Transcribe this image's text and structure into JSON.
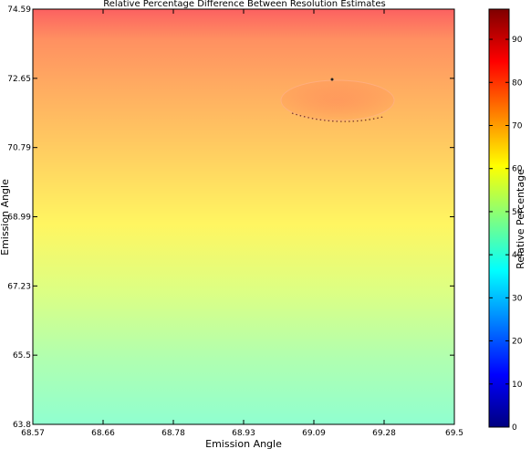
{
  "chart_data": {
    "type": "heatmap",
    "title": "Relative Percentage Difference Between Resolution Estimates",
    "xlabel": "Emission Angle",
    "ylabel": "Emission Angle",
    "x_ticks": [
      "68.57",
      "68.66",
      "68.78",
      "68.93",
      "69.09",
      "69.28",
      "69.5"
    ],
    "y_ticks": [
      "74.59",
      "72.65",
      "70.79",
      "68.99",
      "67.23",
      "65.5",
      "63.8"
    ],
    "xlim": [
      68.57,
      69.5
    ],
    "ylim": [
      63.8,
      74.59
    ],
    "colormap": "jet",
    "gradient_stops": [
      {
        "y": 63.8,
        "value": 45
      },
      {
        "y": 65.5,
        "value": 50
      },
      {
        "y": 67.23,
        "value": 57
      },
      {
        "y": 68.99,
        "value": 64
      },
      {
        "y": 70.79,
        "value": 70
      },
      {
        "y": 72.65,
        "value": 76
      },
      {
        "y": 73.8,
        "value": 80
      },
      {
        "y": 74.59,
        "value": 88
      }
    ],
    "feature": {
      "shape": "ellipse",
      "x_center": 69.16,
      "y_center": 72.1,
      "x_halfwidth": 0.14,
      "y_halfwidth": 0.55
    },
    "colorbar": {
      "label": "Relative Percentage",
      "ticks": [
        "0",
        "10",
        "20",
        "30",
        "40",
        "50",
        "60",
        "70",
        "80",
        "90"
      ],
      "range": [
        0,
        97
      ]
    },
    "grid": false
  }
}
